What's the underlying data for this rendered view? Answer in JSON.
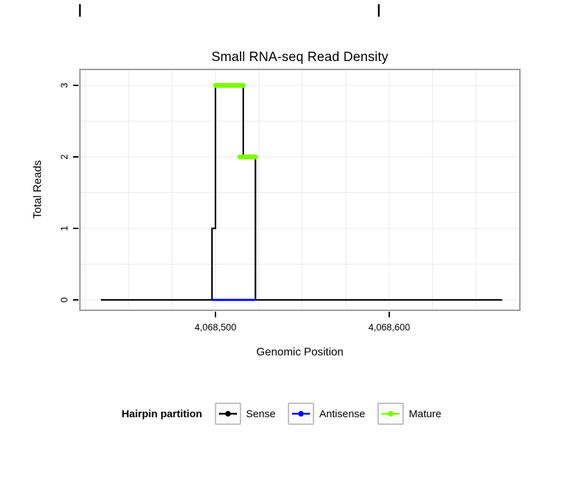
{
  "figure": {
    "title": "Small RNA-seq Read Density",
    "x_axis": {
      "label": "Genomic Position",
      "ticks": [
        {
          "value": 4068500,
          "label": "4,068,500"
        },
        {
          "value": 4068600,
          "label": "4,068,600"
        }
      ]
    },
    "y_axis": {
      "label": "Total Reads",
      "ticks": [
        {
          "value": 0,
          "label": "0"
        },
        {
          "value": 1,
          "label": "1"
        },
        {
          "value": 2,
          "label": "2"
        },
        {
          "value": 3,
          "label": "3"
        }
      ]
    },
    "legend": {
      "title": "Hairpin partition",
      "entries": [
        {
          "name": "sense",
          "label": "Sense",
          "color": "#000000"
        },
        {
          "name": "antisense",
          "label": "Antisense",
          "color": "#0000ff"
        },
        {
          "name": "mature",
          "label": "Mature",
          "color": "#7cfc00"
        }
      ]
    },
    "colors": {
      "grid": "#e8ebf2",
      "panel_border": "#999999",
      "background": "#ffffff"
    }
  },
  "chart_data": {
    "type": "line",
    "title": "Small RNA-seq Read Density",
    "xlabel": "Genomic Position",
    "ylabel": "Total Reads",
    "xlim": [
      4068422,
      4068676
    ],
    "ylim": [
      0,
      3
    ],
    "x_ticks": [
      4068500,
      4068600
    ],
    "y_ticks": [
      0,
      1,
      2,
      3
    ],
    "grid": {
      "x_step": 25,
      "y_step": 0.5
    },
    "legend_position": "bottom",
    "series": [
      {
        "name": "Sense",
        "type": "step-line",
        "color": "#000000",
        "points": [
          [
            4068434,
            0
          ],
          [
            4068498,
            0
          ],
          [
            4068498,
            1
          ],
          [
            4068500,
            1
          ],
          [
            4068500,
            3
          ],
          [
            4068516,
            3
          ],
          [
            4068516,
            2
          ],
          [
            4068523,
            2
          ],
          [
            4068523,
            0
          ],
          [
            4068665,
            0
          ]
        ]
      },
      {
        "name": "Antisense",
        "type": "line",
        "color": "#0000ff",
        "points": [
          [
            4068498,
            0
          ],
          [
            4068523,
            0
          ]
        ]
      },
      {
        "name": "Mature",
        "type": "segments",
        "color": "#7cfc00",
        "segments": [
          {
            "x1": 4068500,
            "x2": 4068516,
            "y": 3
          },
          {
            "x1": 4068514,
            "x2": 4068523,
            "y": 2
          }
        ]
      }
    ]
  }
}
